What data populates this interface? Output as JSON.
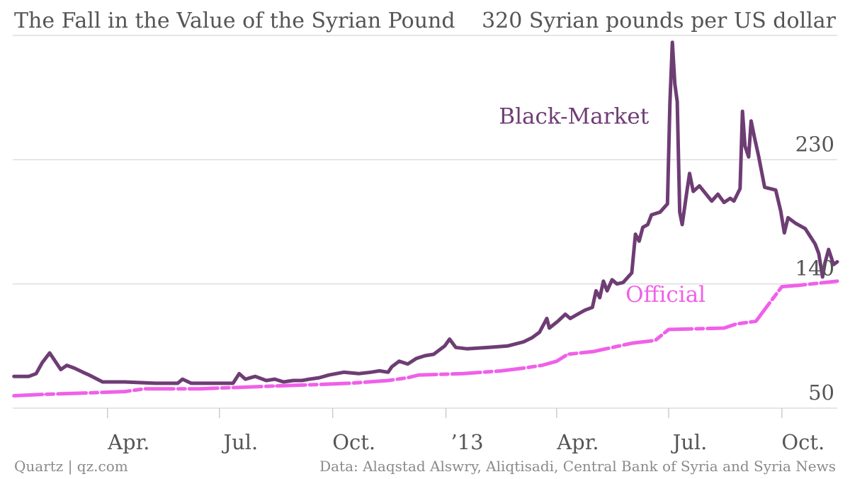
{
  "title": "The Fall in the Value of the Syrian Pound",
  "unit_label": "320 Syrian pounds per US dollar",
  "footer": {
    "source_left": "Quartz | qz.com",
    "source_right": "Data: Alaqstad Alswry, Aliqtisadi, Central Bank of Syria and Syria News"
  },
  "colors": {
    "black_market": "#6e3d74",
    "official": "#f060e8",
    "grid": "#dddddd",
    "axis_text": "#555555"
  },
  "chart_data": {
    "type": "line",
    "title": "The Fall in the Value of the Syrian Pound",
    "ylabel": "Syrian pounds per US dollar",
    "ylim": [
      50,
      320
    ],
    "yticks": [
      50,
      140,
      230,
      320
    ],
    "ytick_labels": [
      "50",
      "140",
      "230",
      "320"
    ],
    "xlim": [
      "2012-01-15",
      "2013-11-15"
    ],
    "xticks": [
      "2012-04-01",
      "2012-07-01",
      "2012-10-01",
      "2013-01-01",
      "2013-04-01",
      "2013-07-01",
      "2013-10-01"
    ],
    "xtick_labels": [
      "Apr.",
      "Jul.",
      "Oct.",
      "’13",
      "Apr.",
      "Jul.",
      "Oct."
    ],
    "grid": true,
    "legend": "direct labels",
    "series": [
      {
        "name": "Black-Market",
        "label_anchor": {
          "x": "2013-06-15",
          "y": 256
        },
        "points": [
          [
            "2012-01-16",
            73
          ],
          [
            "2012-01-28",
            73
          ],
          [
            "2012-02-03",
            75
          ],
          [
            "2012-02-08",
            83
          ],
          [
            "2012-02-14",
            90
          ],
          [
            "2012-02-17",
            86
          ],
          [
            "2012-02-23",
            78
          ],
          [
            "2012-02-28",
            81
          ],
          [
            "2012-03-05",
            79
          ],
          [
            "2012-03-12",
            76
          ],
          [
            "2012-03-17",
            74
          ],
          [
            "2012-03-28",
            69
          ],
          [
            "2012-04-15",
            69
          ],
          [
            "2012-05-10",
            68
          ],
          [
            "2012-05-28",
            68
          ],
          [
            "2012-06-01",
            71
          ],
          [
            "2012-06-08",
            68
          ],
          [
            "2012-06-25",
            68
          ],
          [
            "2012-07-05",
            68
          ],
          [
            "2012-07-12",
            68
          ],
          [
            "2012-07-17",
            75
          ],
          [
            "2012-07-22",
            71
          ],
          [
            "2012-07-30",
            73
          ],
          [
            "2012-08-08",
            70
          ],
          [
            "2012-08-15",
            71
          ],
          [
            "2012-08-22",
            69
          ],
          [
            "2012-08-30",
            70
          ],
          [
            "2012-09-06",
            70
          ],
          [
            "2012-09-12",
            71
          ],
          [
            "2012-09-20",
            72
          ],
          [
            "2012-09-28",
            74
          ],
          [
            "2012-10-10",
            76
          ],
          [
            "2012-10-22",
            75
          ],
          [
            "2012-11-01",
            76
          ],
          [
            "2012-11-08",
            77
          ],
          [
            "2012-11-15",
            76
          ],
          [
            "2012-11-18",
            80
          ],
          [
            "2012-11-24",
            84
          ],
          [
            "2012-12-01",
            82
          ],
          [
            "2012-12-08",
            86
          ],
          [
            "2012-12-15",
            88
          ],
          [
            "2012-12-22",
            89
          ],
          [
            "2012-12-31",
            95
          ],
          [
            "2013-01-04",
            100
          ],
          [
            "2013-01-09",
            94
          ],
          [
            "2013-01-18",
            93
          ],
          [
            "2013-02-05",
            94
          ],
          [
            "2013-02-20",
            95
          ],
          [
            "2013-03-05",
            98
          ],
          [
            "2013-03-12",
            101
          ],
          [
            "2013-03-18",
            105
          ],
          [
            "2013-03-24",
            115
          ],
          [
            "2013-03-26",
            108
          ],
          [
            "2013-04-02",
            113
          ],
          [
            "2013-04-08",
            118
          ],
          [
            "2013-04-12",
            115
          ],
          [
            "2013-04-18",
            118
          ],
          [
            "2013-04-24",
            121
          ],
          [
            "2013-04-30",
            123
          ],
          [
            "2013-05-03",
            135
          ],
          [
            "2013-05-06",
            130
          ],
          [
            "2013-05-09",
            142
          ],
          [
            "2013-05-12",
            135
          ],
          [
            "2013-05-16",
            143
          ],
          [
            "2013-05-20",
            140
          ],
          [
            "2013-05-25",
            141
          ],
          [
            "2013-06-01",
            148
          ],
          [
            "2013-06-04",
            176
          ],
          [
            "2013-06-07",
            171
          ],
          [
            "2013-06-10",
            181
          ],
          [
            "2013-06-14",
            183
          ],
          [
            "2013-06-17",
            190
          ],
          [
            "2013-06-24",
            192
          ],
          [
            "2013-06-30",
            198
          ],
          [
            "2013-07-02",
            270
          ],
          [
            "2013-07-04",
            315
          ],
          [
            "2013-07-06",
            285
          ],
          [
            "2013-07-08",
            272
          ],
          [
            "2013-07-10",
            192
          ],
          [
            "2013-07-12",
            183
          ],
          [
            "2013-07-16",
            208
          ],
          [
            "2013-07-18",
            220
          ],
          [
            "2013-07-21",
            207
          ],
          [
            "2013-07-26",
            211
          ],
          [
            "2013-08-05",
            200
          ],
          [
            "2013-08-10",
            205
          ],
          [
            "2013-08-15",
            199
          ],
          [
            "2013-08-20",
            202
          ],
          [
            "2013-08-23",
            200
          ],
          [
            "2013-08-28",
            209
          ],
          [
            "2013-08-30",
            265
          ],
          [
            "2013-09-01",
            240
          ],
          [
            "2013-09-04",
            232
          ],
          [
            "2013-09-06",
            258
          ],
          [
            "2013-09-09",
            245
          ],
          [
            "2013-09-12",
            233
          ],
          [
            "2013-09-17",
            210
          ],
          [
            "2013-09-26",
            208
          ],
          [
            "2013-09-30",
            193
          ],
          [
            "2013-10-03",
            177
          ],
          [
            "2013-10-06",
            188
          ],
          [
            "2013-10-12",
            184
          ],
          [
            "2013-10-20",
            180
          ],
          [
            "2013-10-28",
            169
          ],
          [
            "2013-10-31",
            162
          ],
          [
            "2013-11-03",
            145
          ],
          [
            "2013-11-05",
            155
          ],
          [
            "2013-11-08",
            165
          ],
          [
            "2013-11-12",
            154
          ],
          [
            "2013-11-15",
            156
          ]
        ]
      },
      {
        "name": "Official",
        "label_anchor": {
          "x": "2013-07-31",
          "y": 127
        },
        "points": [
          [
            "2012-01-16",
            59
          ],
          [
            "2012-02-10",
            60
          ],
          [
            "2012-03-15",
            61
          ],
          [
            "2012-04-15",
            62
          ],
          [
            "2012-05-01",
            64
          ],
          [
            "2012-06-15",
            64
          ],
          [
            "2012-08-15",
            66
          ],
          [
            "2012-09-15",
            67
          ],
          [
            "2012-10-15",
            68
          ],
          [
            "2012-11-15",
            70
          ],
          [
            "2012-12-01",
            72
          ],
          [
            "2012-12-10",
            74
          ],
          [
            "2013-01-15",
            75
          ],
          [
            "2013-02-15",
            77
          ],
          [
            "2013-03-05",
            79
          ],
          [
            "2013-03-20",
            81
          ],
          [
            "2013-04-01",
            84
          ],
          [
            "2013-04-10",
            89
          ],
          [
            "2013-05-01",
            91
          ],
          [
            "2013-06-01",
            97
          ],
          [
            "2013-06-20",
            99
          ],
          [
            "2013-07-01",
            107
          ],
          [
            "2013-08-15",
            108
          ],
          [
            "2013-08-25",
            111
          ],
          [
            "2013-09-10",
            113
          ],
          [
            "2013-09-20",
            125
          ],
          [
            "2013-10-01",
            138
          ],
          [
            "2013-10-15",
            139
          ],
          [
            "2013-11-15",
            142
          ]
        ]
      }
    ]
  }
}
